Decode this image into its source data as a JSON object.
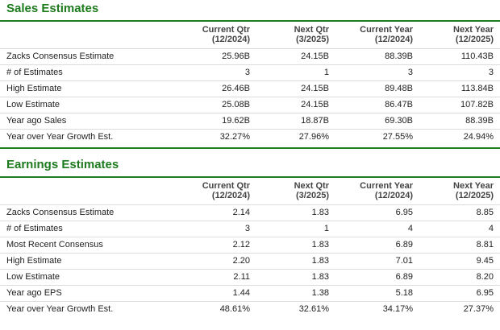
{
  "sales": {
    "title": "Sales Estimates",
    "headers": [
      {
        "top": "",
        "sub": ""
      },
      {
        "top": "Current Qtr",
        "sub": "(12/2024)"
      },
      {
        "top": "Next Qtr",
        "sub": "(3/2025)"
      },
      {
        "top": "Current Year",
        "sub": "(12/2024)"
      },
      {
        "top": "Next Year",
        "sub": "(12/2025)"
      }
    ],
    "rows": [
      {
        "label": "Zacks Consensus Estimate",
        "values": [
          "25.96B",
          "24.15B",
          "88.39B",
          "110.43B"
        ]
      },
      {
        "label": "# of Estimates",
        "values": [
          "3",
          "1",
          "3",
          "3"
        ]
      },
      {
        "label": "High Estimate",
        "values": [
          "26.46B",
          "24.15B",
          "89.48B",
          "113.84B"
        ]
      },
      {
        "label": "Low Estimate",
        "values": [
          "25.08B",
          "24.15B",
          "86.47B",
          "107.82B"
        ]
      },
      {
        "label": "Year ago Sales",
        "values": [
          "19.62B",
          "18.87B",
          "69.30B",
          "88.39B"
        ]
      },
      {
        "label": "Year over Year Growth Est.",
        "values": [
          "32.27%",
          "27.96%",
          "27.55%",
          "24.94%"
        ]
      }
    ]
  },
  "earnings": {
    "title": "Earnings Estimates",
    "headers": [
      {
        "top": "",
        "sub": ""
      },
      {
        "top": "Current Qtr",
        "sub": "(12/2024)"
      },
      {
        "top": "Next Qtr",
        "sub": "(3/2025)"
      },
      {
        "top": "Current Year",
        "sub": "(12/2024)"
      },
      {
        "top": "Next Year",
        "sub": "(12/2025)"
      }
    ],
    "rows": [
      {
        "label": "Zacks Consensus Estimate",
        "values": [
          "2.14",
          "1.83",
          "6.95",
          "8.85"
        ]
      },
      {
        "label": "# of Estimates",
        "values": [
          "3",
          "1",
          "4",
          "4"
        ]
      },
      {
        "label": "Most Recent Consensus",
        "values": [
          "2.12",
          "1.83",
          "6.89",
          "8.81"
        ]
      },
      {
        "label": "High Estimate",
        "values": [
          "2.20",
          "1.83",
          "7.01",
          "9.45"
        ]
      },
      {
        "label": "Low Estimate",
        "values": [
          "2.11",
          "1.83",
          "6.89",
          "8.20"
        ]
      },
      {
        "label": "Year ago EPS",
        "values": [
          "1.44",
          "1.38",
          "5.18",
          "6.95"
        ]
      },
      {
        "label": "Year over Year Growth Est.",
        "values": [
          "48.61%",
          "32.61%",
          "34.17%",
          "27.37%"
        ]
      }
    ]
  },
  "colors": {
    "title_green": "#1d7a1d",
    "divider_green": "#1e7b1e",
    "row_border": "#dcdcdc"
  }
}
